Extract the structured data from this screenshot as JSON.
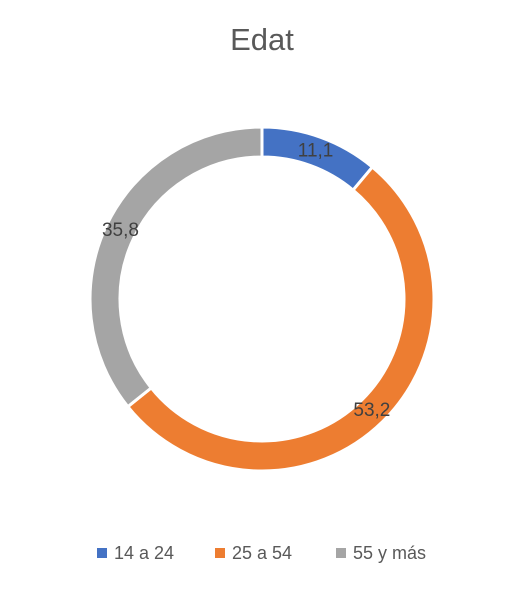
{
  "chart_data": {
    "type": "donut",
    "title": "Edat",
    "categories": [
      "14 a 24",
      "25 a 54",
      "55 y más"
    ],
    "values": [
      11.1,
      53.2,
      35.8
    ],
    "value_labels": [
      "11,1",
      "53,2",
      "35,8"
    ],
    "colors": [
      "#4472c4",
      "#ed7d31",
      "#a5a5a5"
    ],
    "legend": "bottom"
  }
}
